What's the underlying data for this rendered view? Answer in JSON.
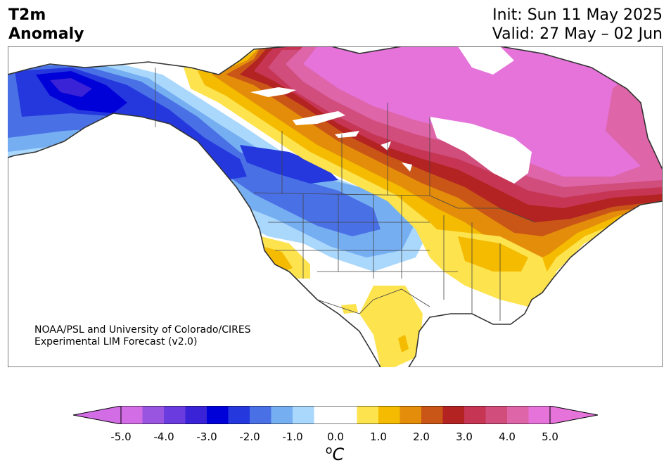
{
  "header": {
    "title_line1": "T2m",
    "title_line2": "Anomaly",
    "init_text": "Init: Sun 11 May 2025",
    "valid_text": "Valid: 27 May – 02 Jun"
  },
  "credit": {
    "line1": "NOAA/PSL and University of Colorado/CIRES",
    "line2": "Experimental LIM Forecast (v2.0)"
  },
  "colorbar": {
    "ticks": [
      "-5.0",
      "-4.0",
      "-3.0",
      "-2.0",
      "-1.0",
      "0.0",
      "1.0",
      "2.0",
      "3.0",
      "4.0",
      "5.0"
    ],
    "unit_base": "o",
    "unit_letter": "C",
    "colors": [
      "#d26de6",
      "#9a55e0",
      "#6a3ce0",
      "#3a22d6",
      "#0000d8",
      "#2438dd",
      "#4a70e6",
      "#76aef2",
      "#aad8fc",
      "#ffffff",
      "#ffffff",
      "#fde34e",
      "#f4bb00",
      "#e48d0b",
      "#c95616",
      "#b32322",
      "#c63553",
      "#d04d7c",
      "#dd65a8",
      "#e573d9"
    ],
    "min_color": "#d26de6",
    "max_color": "#e573d9"
  },
  "map": {
    "region": "North America",
    "colors": {
      "ocean": "#ffffff",
      "coast": "#333333",
      "border": "#444444"
    }
  }
}
